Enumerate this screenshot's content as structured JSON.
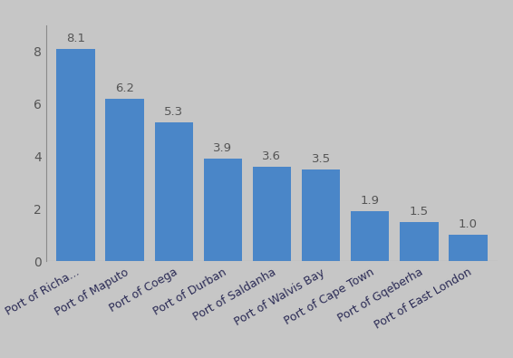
{
  "chart_data": {
    "type": "bar",
    "categories": [
      "Port of Richa...",
      "Port of Maputo",
      "Port of Coega",
      "Port of Durban",
      "Port of Saldanha",
      "Port of Walvis Bay",
      "Port of Cape Town",
      "Port of Gqeberha",
      "Port of East London"
    ],
    "values": [
      8.1,
      6.2,
      5.3,
      3.9,
      3.6,
      3.5,
      1.9,
      1.5,
      1.0
    ],
    "color": "#4a86c8",
    "ylim": [
      0,
      9
    ],
    "yticks": [
      0,
      2,
      4,
      6,
      8
    ],
    "grid": false,
    "data_labels": true
  }
}
